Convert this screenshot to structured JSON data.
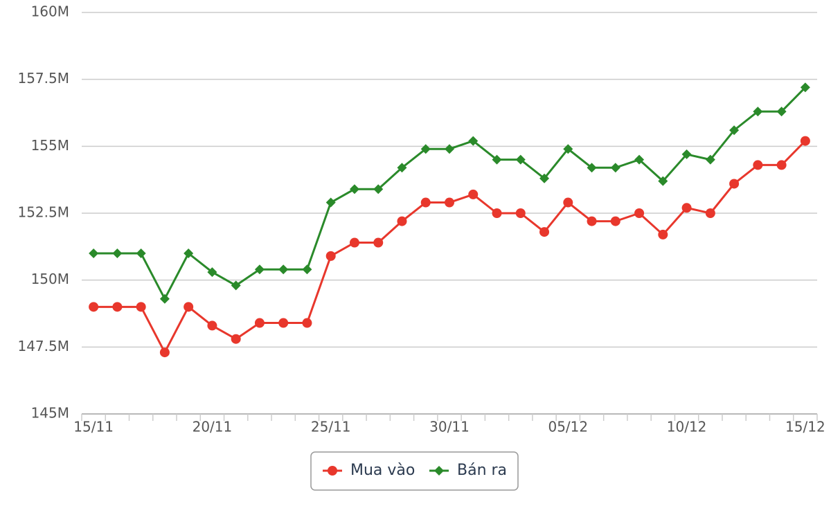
{
  "chart_data": {
    "type": "line",
    "categories": [
      "15/11",
      null,
      null,
      null,
      null,
      "20/11",
      null,
      null,
      null,
      null,
      "25/11",
      null,
      null,
      null,
      null,
      "30/11",
      null,
      null,
      null,
      null,
      "05/12",
      null,
      null,
      null,
      null,
      "10/12",
      null,
      null,
      null,
      null,
      "15/12"
    ],
    "series": [
      {
        "name": "Mua vào",
        "color": "#e8372c",
        "marker": "circle",
        "values": [
          149.0,
          149.0,
          149.0,
          147.3,
          149.0,
          148.3,
          147.8,
          148.4,
          148.4,
          148.4,
          150.9,
          151.4,
          151.4,
          152.2,
          152.9,
          152.9,
          153.2,
          152.5,
          152.5,
          151.8,
          152.9,
          152.2,
          152.2,
          152.5,
          151.7,
          152.7,
          152.5,
          153.6,
          154.3,
          154.3,
          155.2
        ]
      },
      {
        "name": "Bán ra",
        "color": "#2a8a2a",
        "marker": "diamond",
        "values": [
          151.0,
          151.0,
          151.0,
          149.3,
          151.0,
          150.3,
          149.8,
          150.4,
          150.4,
          150.4,
          152.9,
          153.4,
          153.4,
          154.2,
          154.9,
          154.9,
          155.2,
          154.5,
          154.5,
          153.8,
          154.9,
          154.2,
          154.2,
          154.5,
          153.7,
          154.7,
          154.5,
          155.6,
          156.3,
          156.3,
          157.2
        ]
      }
    ],
    "ylim": [
      145,
      160
    ],
    "yticks": [
      {
        "value": 145,
        "label": "145M"
      },
      {
        "value": 147.5,
        "label": "147.5M"
      },
      {
        "value": 150,
        "label": "150M"
      },
      {
        "value": 152.5,
        "label": "152.5M"
      },
      {
        "value": 155,
        "label": "155M"
      },
      {
        "value": 157.5,
        "label": "157.5M"
      },
      {
        "value": 160,
        "label": "160M"
      }
    ],
    "grid": true,
    "legend": "bottom"
  }
}
